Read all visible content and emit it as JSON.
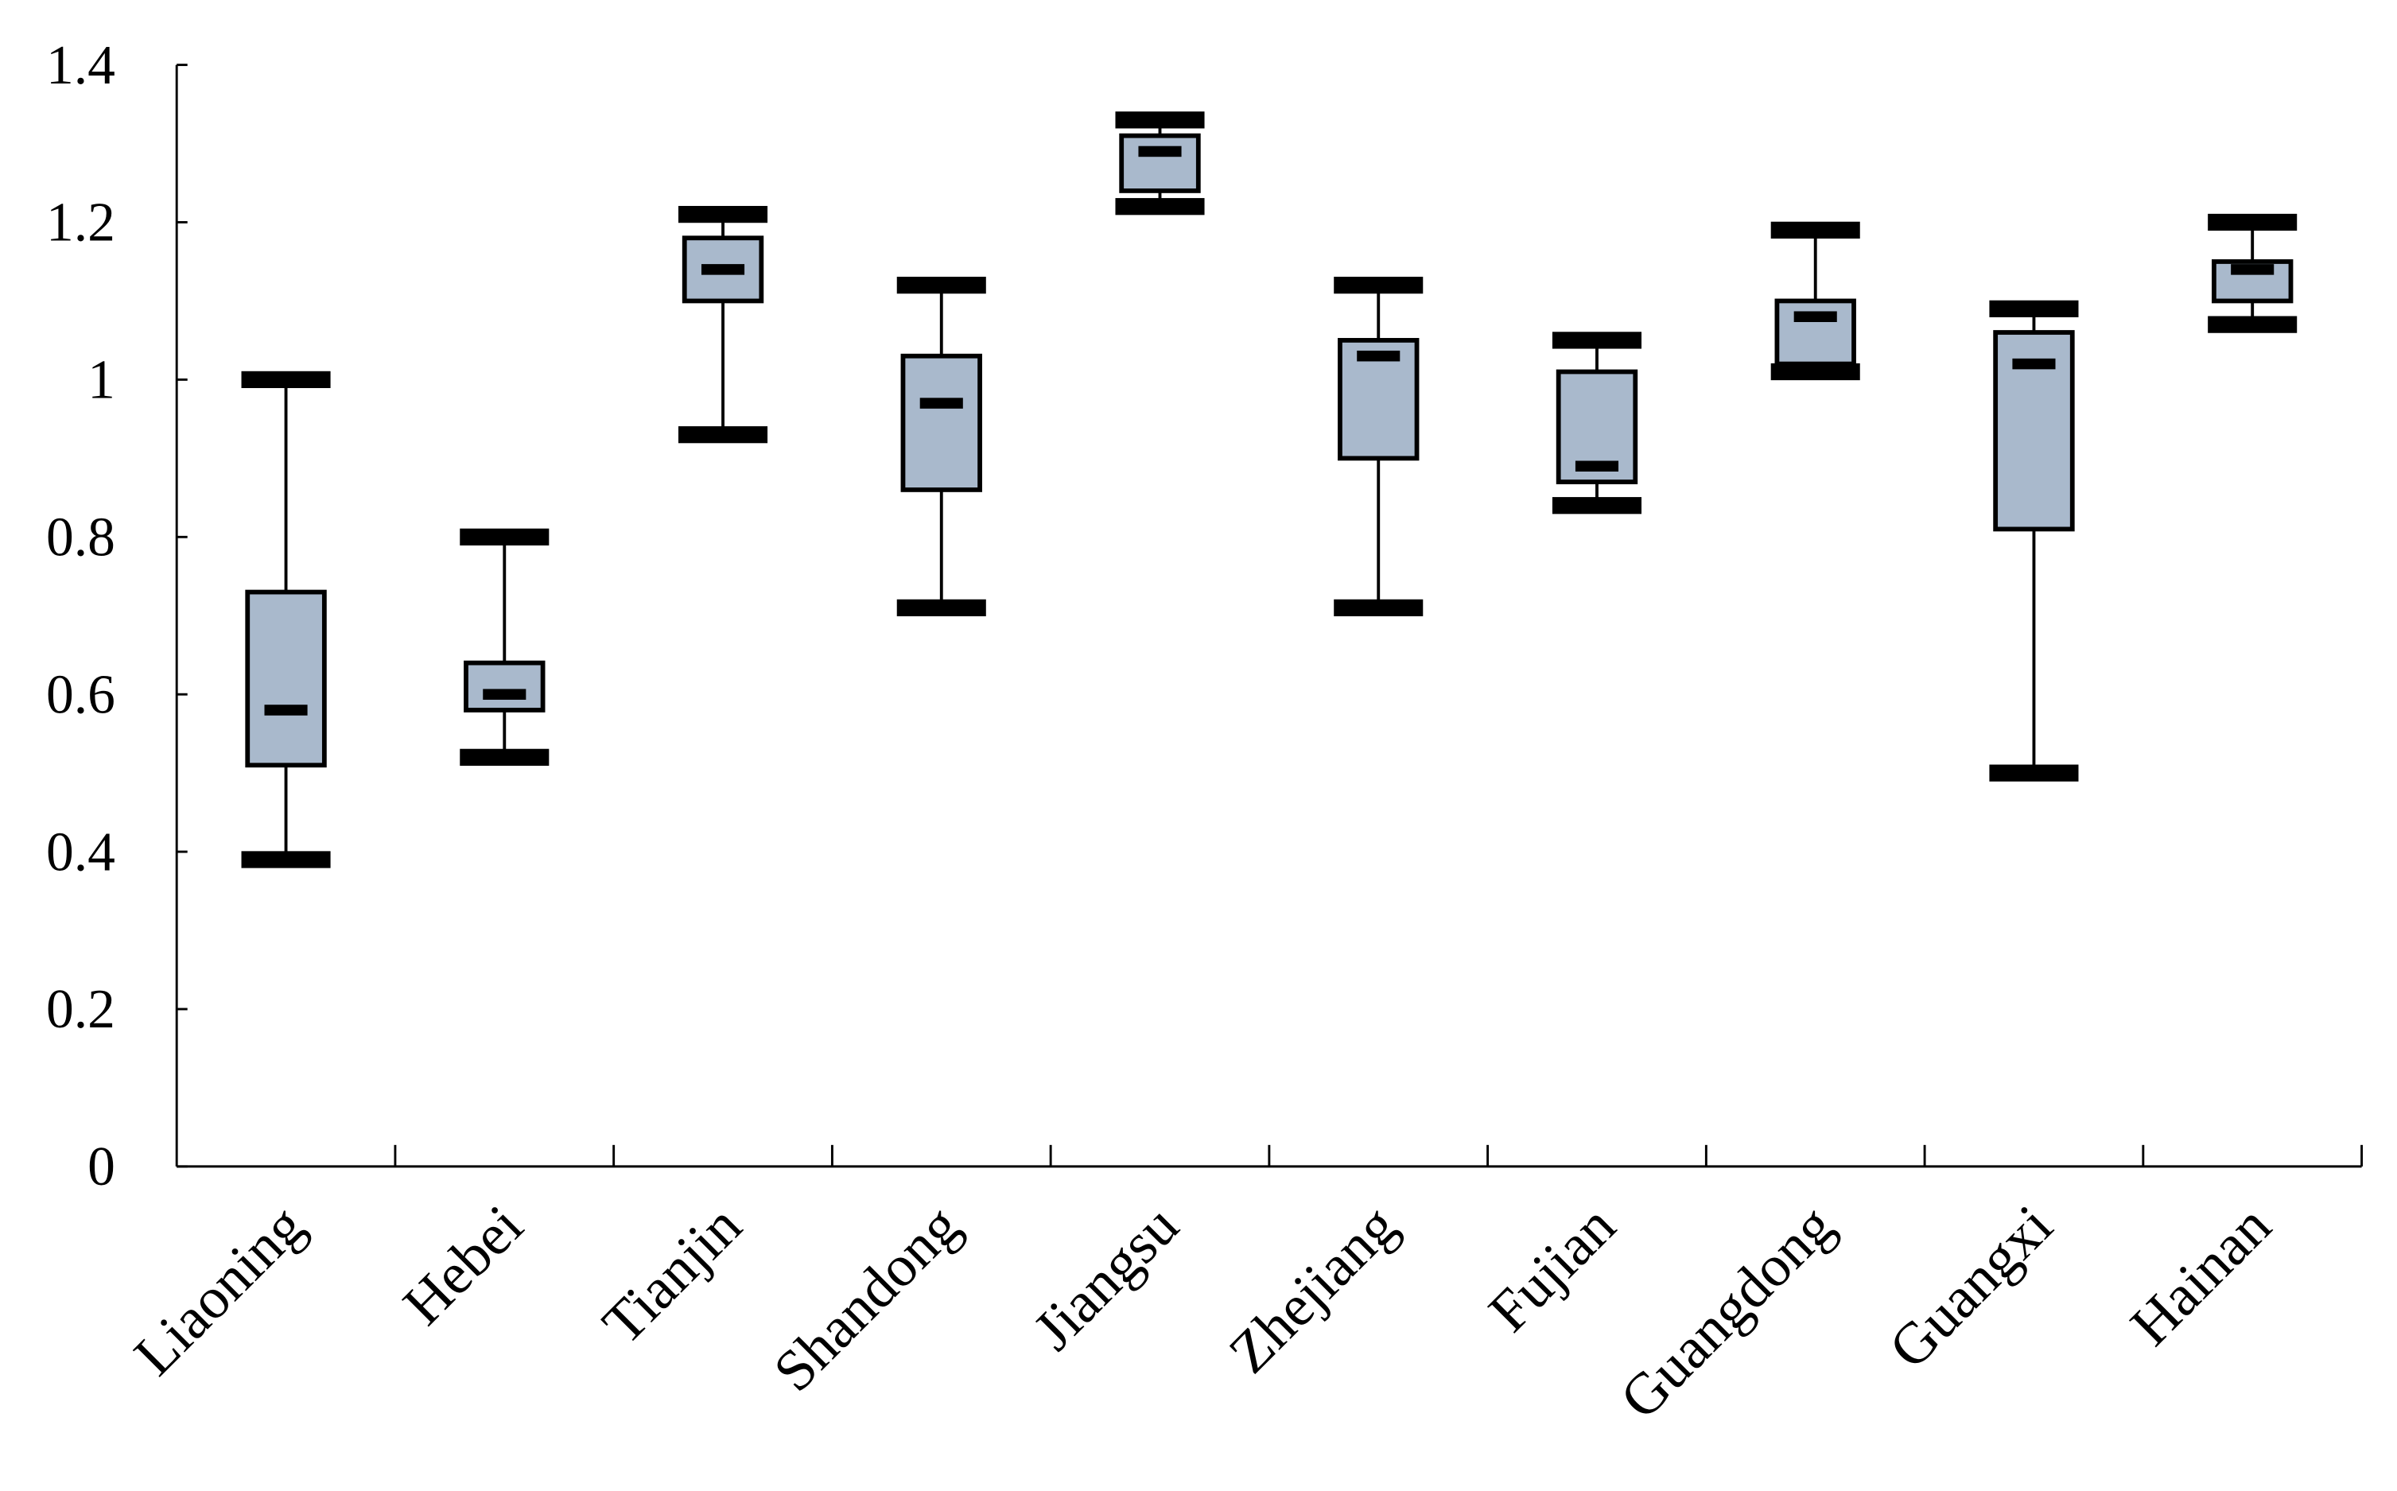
{
  "chart_data": {
    "type": "box",
    "categories": [
      "Liaoning",
      "Hebei",
      "Tianjin",
      "Shandong",
      "Jiangsu",
      "Zhejiang",
      "Fujian",
      "Guangdong",
      "Guangxi",
      "Hainan"
    ],
    "boxes": [
      {
        "min": 0.39,
        "q1": 0.51,
        "median": 0.58,
        "q3": 0.73,
        "max": 1.0
      },
      {
        "min": 0.52,
        "q1": 0.58,
        "median": 0.6,
        "q3": 0.64,
        "max": 0.8
      },
      {
        "min": 0.93,
        "q1": 1.1,
        "median": 1.14,
        "q3": 1.18,
        "max": 1.21
      },
      {
        "min": 0.71,
        "q1": 0.86,
        "median": 0.97,
        "q3": 1.03,
        "max": 1.12
      },
      {
        "min": 1.22,
        "q1": 1.24,
        "median": 1.29,
        "q3": 1.31,
        "max": 1.33
      },
      {
        "min": 0.71,
        "q1": 0.9,
        "median": 1.03,
        "q3": 1.05,
        "max": 1.12
      },
      {
        "min": 0.84,
        "q1": 0.87,
        "median": 0.89,
        "q3": 1.01,
        "max": 1.05
      },
      {
        "min": 1.01,
        "q1": 1.02,
        "median": 1.08,
        "q3": 1.1,
        "max": 1.19
      },
      {
        "min": 0.5,
        "q1": 0.81,
        "median": 1.02,
        "q3": 1.06,
        "max": 1.09
      },
      {
        "min": 1.07,
        "q1": 1.1,
        "median": 1.14,
        "q3": 1.15,
        "max": 1.2
      }
    ],
    "color": "#a9b9cc",
    "ylim": [
      0,
      1.4
    ],
    "yticks": [
      0,
      0.2,
      0.4,
      0.6,
      0.8,
      1,
      1.2,
      1.4
    ]
  }
}
